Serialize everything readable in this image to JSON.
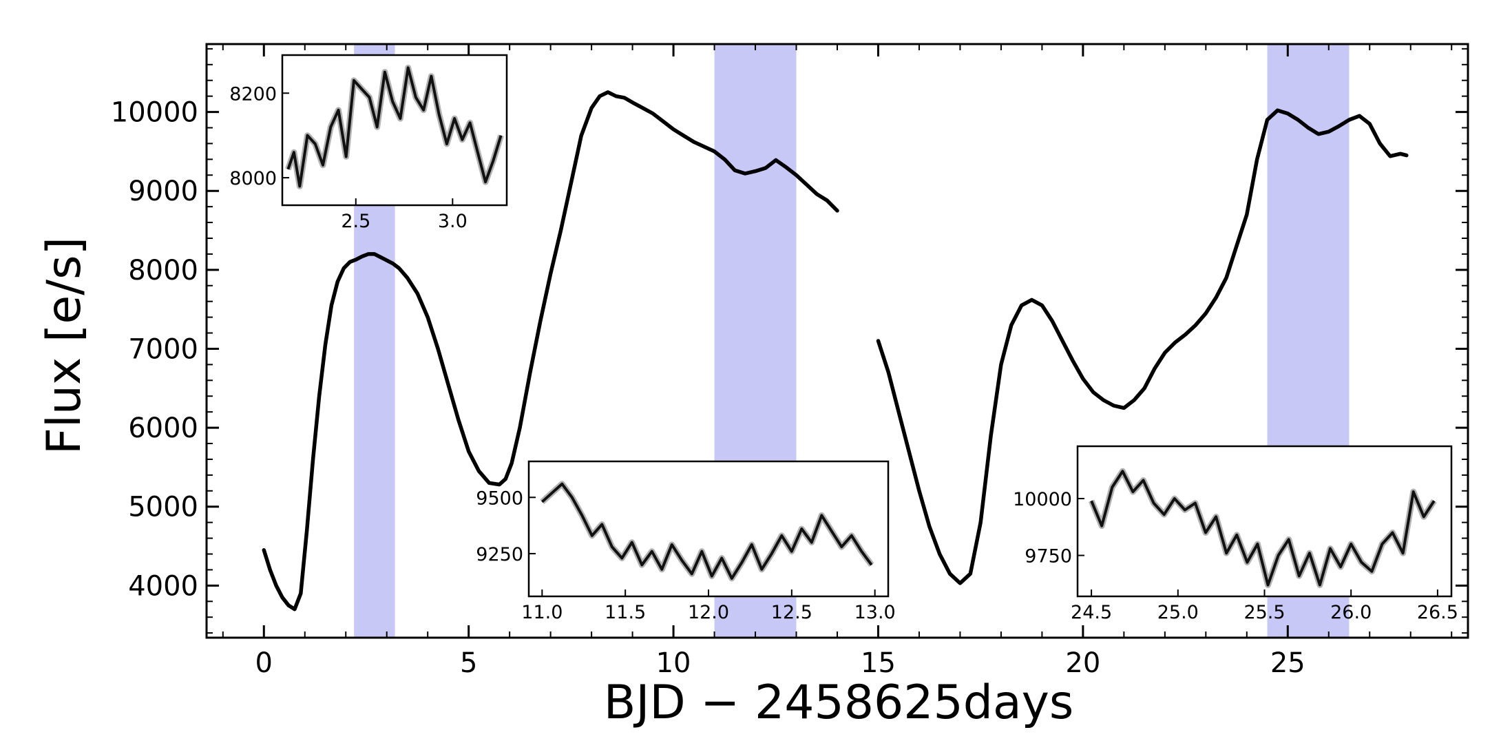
{
  "chart_data": {
    "main": {
      "type": "line",
      "title": "",
      "xlabel": "BJD − 2458625days",
      "ylabel": "Flux [e/s]",
      "xlim": [
        -1.4,
        29.4
      ],
      "ylim": [
        3340,
        10860
      ],
      "xticks": [
        0,
        5,
        10,
        15,
        20,
        25
      ],
      "yticks": [
        4000,
        5000,
        6000,
        7000,
        8000,
        9000,
        10000
      ],
      "grid": false,
      "line_color": "#000000",
      "shaded_color": "#c8c8f7",
      "shaded_regions": [
        [
          2.2,
          3.2
        ],
        [
          11.0,
          13.0
        ],
        [
          24.5,
          26.5
        ]
      ],
      "segments": [
        {
          "x": [
            0,
            0.15,
            0.3,
            0.45,
            0.6,
            0.75,
            0.9,
            1.05,
            1.2,
            1.35,
            1.5,
            1.65,
            1.8,
            1.95,
            2.1,
            2.25,
            2.4,
            2.55,
            2.7,
            2.85,
            3.0,
            3.15,
            3.3,
            3.5,
            3.75,
            4.0,
            4.25,
            4.5,
            4.75,
            5.0,
            5.25,
            5.5,
            5.75,
            5.9,
            6.05,
            6.25,
            6.5,
            6.75,
            7.0,
            7.25,
            7.5,
            7.75,
            8.0,
            8.2,
            8.4,
            8.6,
            8.8,
            9.0,
            9.25,
            9.5,
            9.75,
            10.0,
            10.25,
            10.5,
            10.75,
            11.0,
            11.25,
            11.5,
            11.75,
            12.0,
            12.25,
            12.5,
            12.75,
            13.0,
            13.25,
            13.5,
            13.75,
            14.0
          ],
          "y": [
            4450,
            4200,
            4000,
            3850,
            3750,
            3700,
            3900,
            4700,
            5600,
            6400,
            7050,
            7550,
            7850,
            8020,
            8100,
            8130,
            8170,
            8200,
            8200,
            8160,
            8120,
            8080,
            8020,
            7900,
            7700,
            7400,
            7000,
            6550,
            6100,
            5700,
            5450,
            5300,
            5280,
            5350,
            5550,
            6000,
            6700,
            7350,
            7950,
            8500,
            9100,
            9700,
            10050,
            10200,
            10250,
            10200,
            10180,
            10120,
            10050,
            9980,
            9880,
            9780,
            9700,
            9620,
            9560,
            9500,
            9400,
            9260,
            9220,
            9250,
            9290,
            9390,
            9300,
            9200,
            9080,
            8960,
            8880,
            8750
          ]
        },
        {
          "x": [
            15.0,
            15.25,
            15.5,
            15.75,
            16.0,
            16.25,
            16.5,
            16.75,
            17.0,
            17.25,
            17.5,
            17.75,
            18.0,
            18.25,
            18.5,
            18.75,
            19.0,
            19.25,
            19.5,
            19.75,
            20.0,
            20.25,
            20.5,
            20.75,
            21.0,
            21.25,
            21.5,
            21.75,
            22.0,
            22.25,
            22.5,
            22.75,
            23.0,
            23.25,
            23.5,
            23.75,
            24.0,
            24.25,
            24.5,
            24.75,
            25.0,
            25.25,
            25.5,
            25.75,
            26.0,
            26.25,
            26.5,
            26.75,
            27.0,
            27.25,
            27.5,
            27.75,
            27.9
          ],
          "y": [
            7100,
            6700,
            6200,
            5700,
            5200,
            4750,
            4400,
            4150,
            4030,
            4150,
            4800,
            5900,
            6800,
            7300,
            7550,
            7620,
            7550,
            7350,
            7100,
            6850,
            6620,
            6450,
            6350,
            6280,
            6250,
            6350,
            6500,
            6750,
            6950,
            7080,
            7180,
            7300,
            7450,
            7650,
            7900,
            8300,
            8700,
            9400,
            9900,
            10020,
            9980,
            9900,
            9800,
            9720,
            9750,
            9820,
            9900,
            9950,
            9850,
            9600,
            9440,
            9470,
            9450
          ]
        }
      ]
    },
    "insets": [
      {
        "type": "line",
        "xlim": [
          2.12,
          3.28
        ],
        "ylim": [
          7935,
          8290
        ],
        "xticks": [
          2.5,
          3.0
        ],
        "xtick_labels": [
          "2.5",
          "3.0"
        ],
        "yticks": [
          8000,
          8200
        ],
        "ytick_labels": [
          "8000",
          "8200"
        ],
        "x": [
          2.15,
          2.18,
          2.21,
          2.25,
          2.29,
          2.33,
          2.37,
          2.41,
          2.45,
          2.49,
          2.53,
          2.57,
          2.61,
          2.65,
          2.69,
          2.73,
          2.77,
          2.81,
          2.85,
          2.89,
          2.93,
          2.97,
          3.01,
          3.05,
          3.09,
          3.13,
          3.17,
          3.21,
          3.25
        ],
        "y": [
          8020,
          8060,
          7980,
          8100,
          8080,
          8030,
          8120,
          8160,
          8050,
          8230,
          8210,
          8190,
          8120,
          8250,
          8180,
          8140,
          8260,
          8190,
          8160,
          8240,
          8150,
          8080,
          8140,
          8090,
          8130,
          8060,
          7990,
          8040,
          8100
        ]
      },
      {
        "type": "line",
        "xlim": [
          10.92,
          13.08
        ],
        "ylim": [
          9060,
          9660
        ],
        "xticks": [
          11.0,
          11.5,
          12.0,
          12.5,
          13.0
        ],
        "xtick_labels": [
          "11.0",
          "11.5",
          "12.0",
          "12.5",
          "13.0"
        ],
        "yticks": [
          9250,
          9500
        ],
        "ytick_labels": [
          "9250",
          "9500"
        ],
        "x": [
          11.0,
          11.06,
          11.12,
          11.18,
          11.24,
          11.3,
          11.36,
          11.42,
          11.48,
          11.54,
          11.6,
          11.66,
          11.72,
          11.78,
          11.84,
          11.9,
          11.96,
          12.02,
          12.08,
          12.14,
          12.2,
          12.26,
          12.32,
          12.38,
          12.44,
          12.5,
          12.56,
          12.62,
          12.68,
          12.74,
          12.8,
          12.86,
          12.92,
          12.98
        ],
        "y": [
          9480,
          9520,
          9560,
          9500,
          9420,
          9330,
          9380,
          9280,
          9230,
          9300,
          9200,
          9260,
          9180,
          9290,
          9220,
          9160,
          9260,
          9150,
          9230,
          9140,
          9210,
          9290,
          9180,
          9250,
          9330,
          9260,
          9360,
          9300,
          9420,
          9350,
          9280,
          9330,
          9260,
          9200
        ]
      },
      {
        "type": "line",
        "xlim": [
          24.42,
          26.58
        ],
        "ylim": [
          9570,
          10230
        ],
        "xticks": [
          24.5,
          25.0,
          25.5,
          26.0,
          26.5
        ],
        "xtick_labels": [
          "24.5",
          "25.0",
          "25.5",
          "26.0",
          "26.5"
        ],
        "yticks": [
          9750,
          10000
        ],
        "ytick_labels": [
          "9750",
          "10000"
        ],
        "x": [
          24.5,
          24.56,
          24.62,
          24.68,
          24.74,
          24.8,
          24.86,
          24.92,
          24.98,
          25.04,
          25.1,
          25.16,
          25.22,
          25.28,
          25.34,
          25.4,
          25.46,
          25.52,
          25.58,
          25.64,
          25.7,
          25.76,
          25.82,
          25.88,
          25.94,
          26.0,
          26.06,
          26.12,
          26.18,
          26.24,
          26.3,
          26.36,
          26.42,
          26.48
        ],
        "y": [
          9990,
          9880,
          10050,
          10120,
          10030,
          10080,
          9980,
          9930,
          10000,
          9950,
          9980,
          9850,
          9920,
          9760,
          9840,
          9720,
          9800,
          9620,
          9750,
          9820,
          9660,
          9760,
          9620,
          9780,
          9700,
          9800,
          9720,
          9680,
          9800,
          9850,
          9760,
          10030,
          9920,
          9990
        ]
      }
    ]
  }
}
